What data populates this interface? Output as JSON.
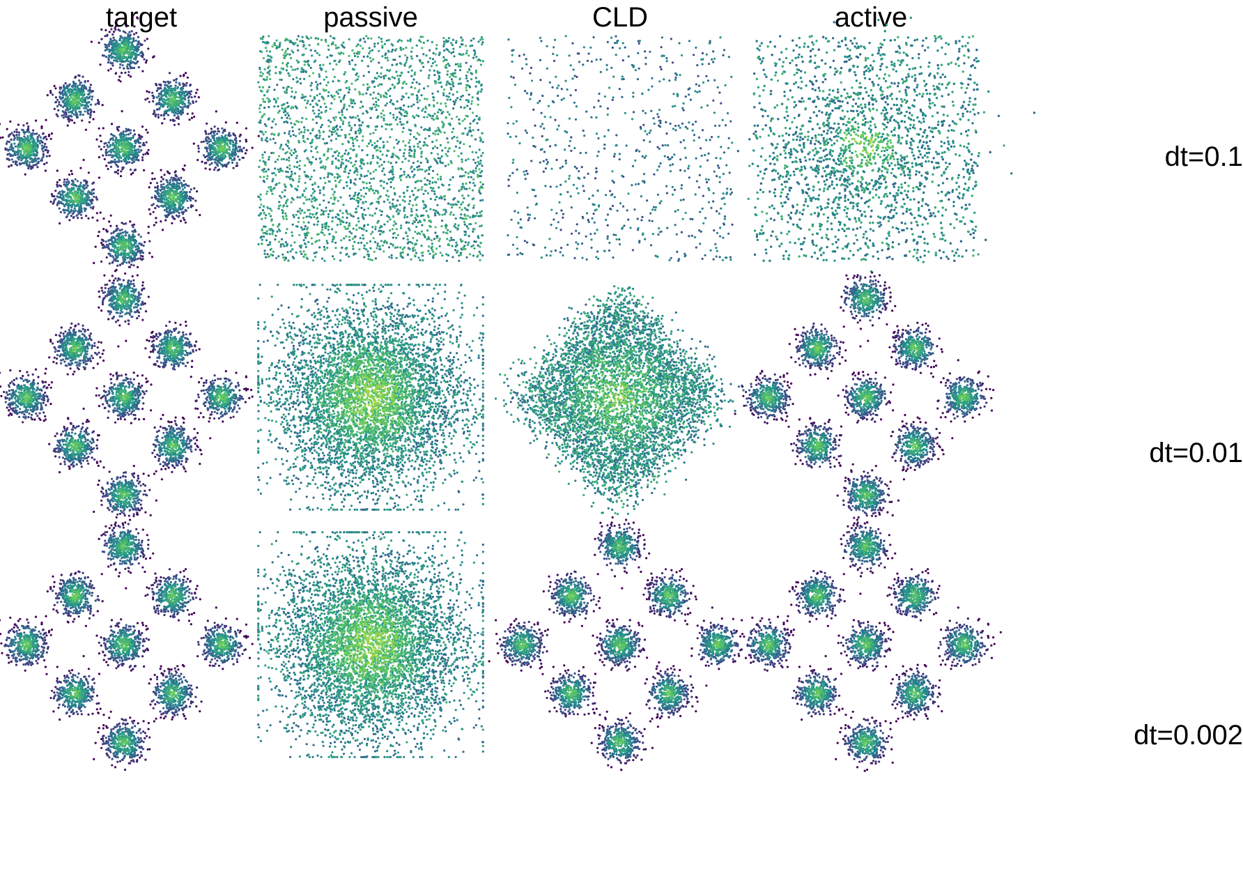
{
  "figure": {
    "column_titles": [
      "target",
      "passive",
      "CLD",
      "active"
    ],
    "row_labels": [
      "dt=0.1",
      "dt=0.01",
      "dt=0.002"
    ]
  },
  "chart_data": {
    "type": "scatter",
    "colormap": "viridis",
    "colormap_stops": [
      "#440154",
      "#3b528b",
      "#21918c",
      "#5ec962",
      "#fde725"
    ],
    "point_color_encodes": "local density",
    "axes_visible": false,
    "grid": false,
    "legend": "none",
    "target_modes": [
      [
        0,
        1
      ],
      [
        -0.5,
        0.5
      ],
      [
        0.5,
        0.5
      ],
      [
        -1,
        0
      ],
      [
        0,
        0
      ],
      [
        1,
        0
      ],
      [
        -0.5,
        -0.5
      ],
      [
        0.5,
        -0.5
      ],
      [
        0,
        -1
      ]
    ],
    "mode_std": 0.1,
    "panels": [
      {
        "row": "dt=0.1",
        "column": "target",
        "kind": "mixture",
        "spread": 1.0
      },
      {
        "row": "dt=0.1",
        "column": "passive",
        "kind": "uniform",
        "density": "medium"
      },
      {
        "row": "dt=0.1",
        "column": "CLD",
        "kind": "uniform",
        "density": "sparse"
      },
      {
        "row": "dt=0.1",
        "column": "active",
        "kind": "uniform+gaussian",
        "density": "dense"
      },
      {
        "row": "dt=0.01",
        "column": "target",
        "kind": "mixture",
        "spread": 1.0
      },
      {
        "row": "dt=0.01",
        "column": "passive",
        "kind": "gaussian",
        "density": "dense"
      },
      {
        "row": "dt=0.01",
        "column": "CLD",
        "kind": "diamond blur",
        "density": "dense"
      },
      {
        "row": "dt=0.01",
        "column": "active",
        "kind": "mixture",
        "spread": 1.0
      },
      {
        "row": "dt=0.002",
        "column": "target",
        "kind": "mixture",
        "spread": 1.0
      },
      {
        "row": "dt=0.002",
        "column": "passive",
        "kind": "gaussian",
        "density": "dense"
      },
      {
        "row": "dt=0.002",
        "column": "CLD",
        "kind": "mixture",
        "spread": 1.0
      },
      {
        "row": "dt=0.002",
        "column": "active",
        "kind": "mixture",
        "spread": 1.0
      }
    ]
  }
}
